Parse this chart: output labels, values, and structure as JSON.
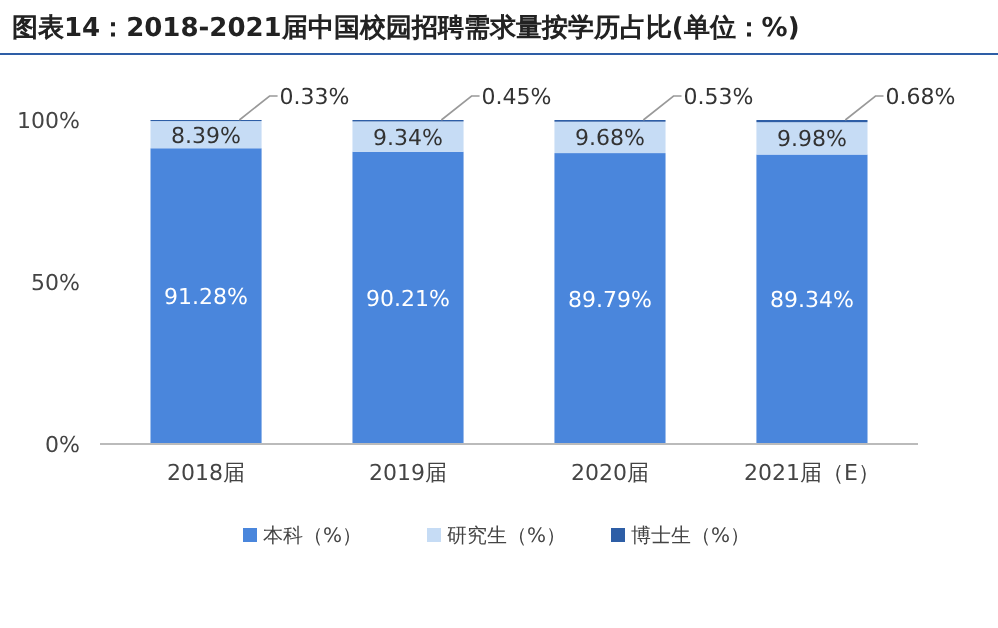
{
  "chart_data": {
    "type": "bar",
    "title": "图表14：2018-2021届中国校园招聘需求量按学历占比(单位：%)",
    "categories": [
      "2018届",
      "2019届",
      "2020届",
      "2021届（E）"
    ],
    "stacked": true,
    "ylim": [
      0,
      100
    ],
    "yticks": [
      {
        "value": 0,
        "label": "0%"
      },
      {
        "value": 50,
        "label": "50%"
      },
      {
        "value": 100,
        "label": "100%"
      }
    ],
    "legend": "bottom",
    "series": [
      {
        "name": "本科（%）",
        "color": "#4a86dc",
        "values": [
          91.28,
          90.21,
          89.79,
          89.34
        ],
        "value_labels": [
          "91.28%",
          "90.21%",
          "89.79%",
          "89.34%"
        ]
      },
      {
        "name": "研究生（%）",
        "color": "#c6dcf5",
        "values": [
          8.39,
          9.34,
          9.68,
          9.98
        ],
        "value_labels": [
          "8.39%",
          "9.34%",
          "9.68%",
          "9.98%"
        ]
      },
      {
        "name": "博士生（%）",
        "color": "#2e5ea6",
        "values": [
          0.33,
          0.45,
          0.53,
          0.68
        ],
        "value_labels": [
          "0.33%",
          "0.45%",
          "0.53%",
          "0.68%"
        ]
      }
    ]
  }
}
